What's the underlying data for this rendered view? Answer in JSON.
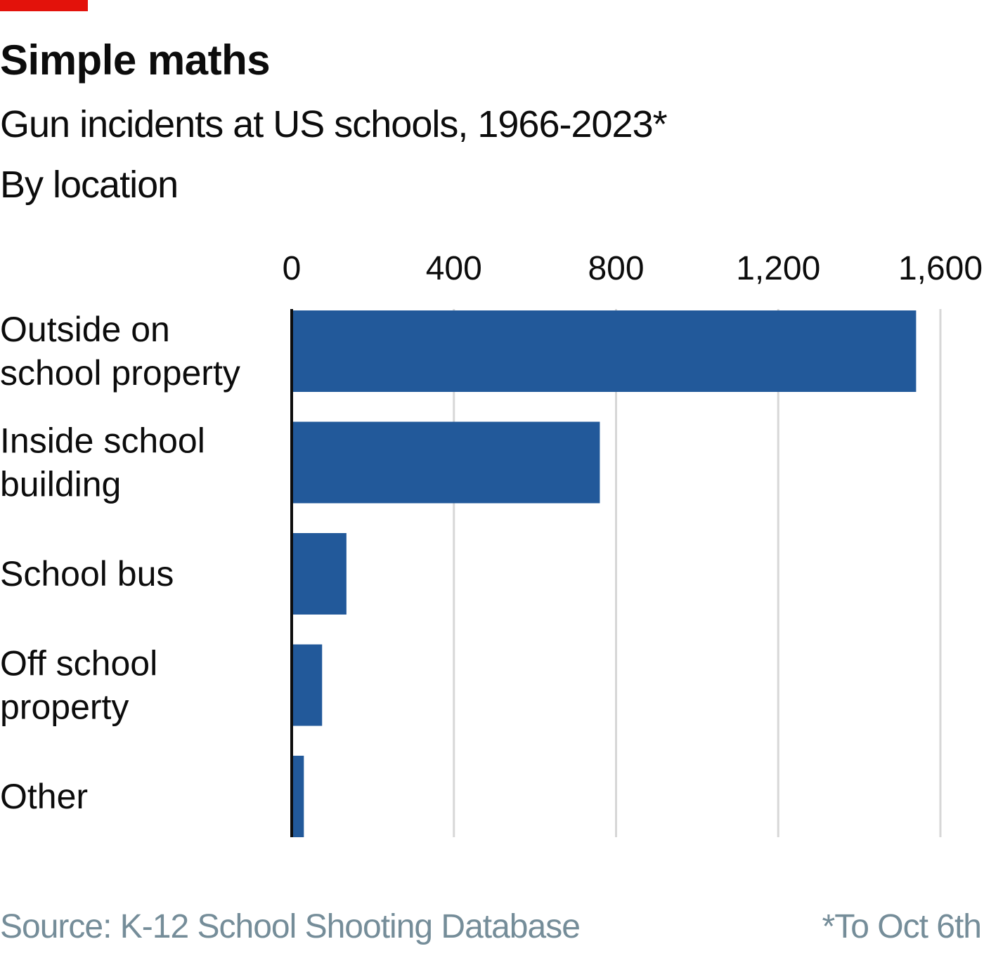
{
  "header": {
    "title": "Simple maths",
    "subtitle": "Gun incidents at US schools, 1966-2023*",
    "subsubtitle": "By location"
  },
  "footer": {
    "source": "Source: K-12 School Shooting Database",
    "footnote": "*To Oct 6th"
  },
  "colors": {
    "accent": "#e3120b",
    "bar": "#22599a",
    "grid": "#d7d7d7",
    "axis": "#0c0c0c",
    "muted": "#758d99"
  },
  "chart_data": {
    "type": "bar",
    "orientation": "horizontal",
    "title": "Gun incidents at US schools, 1966-2023*",
    "categories": [
      [
        "Outside on",
        "school property"
      ],
      [
        "Inside school",
        "building"
      ],
      [
        "School bus"
      ],
      [
        "Off school",
        "property"
      ],
      [
        "Other"
      ]
    ],
    "values": [
      1540,
      760,
      135,
      75,
      30
    ],
    "xlim": [
      0,
      1600
    ],
    "ticks": [
      0,
      400,
      800,
      1200,
      1600
    ],
    "tick_labels": [
      "0",
      "400",
      "800",
      "1,200",
      "1,600"
    ],
    "grid": true,
    "xlabel": "",
    "ylabel": ""
  }
}
